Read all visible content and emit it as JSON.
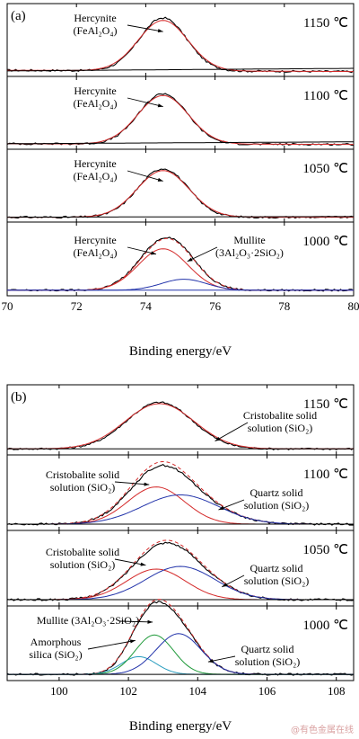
{
  "watermark": "@有色金属在线",
  "chart_data": [
    {
      "type": "line",
      "panel_label": "(a)",
      "xlabel": "Binding energy/eV",
      "xlim": [
        70,
        80
      ],
      "xticks": [
        70,
        72,
        74,
        76,
        78,
        80
      ],
      "ylabel": "",
      "grid": false,
      "subplots": [
        {
          "temperature": "1150 ℃",
          "annotations": [
            {
              "lines": [
                "Hercynite",
                "(FeAl₂O₄)"
              ],
              "target_x": 74.5
            }
          ],
          "series": [
            {
              "role": "measured",
              "color": "#000000",
              "style": "solid",
              "peaks": [
                {
                  "center": 74.5,
                  "sigma": 0.68,
                  "amp": 0.83
                }
              ],
              "baseline": [
                0.04,
                0.02
              ]
            },
            {
              "role": "fit",
              "color": "#d42a2a",
              "style": "solid",
              "peaks": [
                {
                  "center": 74.5,
                  "sigma": 0.72,
                  "amp": 0.79
                }
              ],
              "baseline": [
                0.04,
                0.02
              ]
            },
            {
              "role": "background",
              "color": "#000000",
              "style": "solid",
              "peaks": [],
              "baseline": [
                0.03,
                0.07
              ]
            }
          ]
        },
        {
          "temperature": "1100 ℃",
          "annotations": [
            {
              "lines": [
                "Hercynite",
                "(FeAl₂O₄)"
              ],
              "target_x": 74.5
            }
          ],
          "series": [
            {
              "role": "measured",
              "color": "#000000",
              "style": "solid",
              "peaks": [
                {
                  "center": 74.5,
                  "sigma": 0.7,
                  "amp": 0.79
                }
              ],
              "baseline": [
                0.03,
                0.02
              ]
            },
            {
              "role": "fit",
              "color": "#d42a2a",
              "style": "solid",
              "peaks": [
                {
                  "center": 74.5,
                  "sigma": 0.73,
                  "amp": 0.76
                }
              ],
              "baseline": [
                0.03,
                0.02
              ]
            },
            {
              "role": "background",
              "color": "#000000",
              "style": "solid",
              "peaks": [],
              "baseline": [
                0.03,
                0.06
              ]
            }
          ]
        },
        {
          "temperature": "1050 ℃",
          "annotations": [
            {
              "lines": [
                "Hercynite",
                "(FeAl₂O₄)"
              ],
              "target_x": 74.5
            }
          ],
          "series": [
            {
              "role": "measured",
              "color": "#000000",
              "style": "solid",
              "peaks": [
                {
                  "center": 74.5,
                  "sigma": 0.72,
                  "amp": 0.76
                }
              ],
              "baseline": [
                0.02,
                0.02
              ]
            },
            {
              "role": "fit",
              "color": "#d42a2a",
              "style": "solid",
              "peaks": [
                {
                  "center": 74.5,
                  "sigma": 0.75,
                  "amp": 0.73
                }
              ],
              "baseline": [
                0.02,
                0.02
              ]
            },
            {
              "role": "background",
              "color": "#000000",
              "style": "solid",
              "peaks": [],
              "baseline": [
                0.02,
                0.03
              ]
            }
          ]
        },
        {
          "temperature": "1000 ℃",
          "annotations": [
            {
              "lines": [
                "Hercynite",
                "(FeAl₂O₄)"
              ],
              "target_x": 74.3
            },
            {
              "lines": [
                "Mullite",
                "(3Al₂O₃·2SiO₂)"
              ],
              "target_x": 75.2
            }
          ],
          "series": [
            {
              "role": "measured",
              "color": "#000000",
              "style": "solid",
              "peaks": [
                {
                  "center": 74.5,
                  "sigma": 0.72,
                  "amp": 0.7
                },
                {
                  "center": 75.1,
                  "sigma": 0.65,
                  "amp": 0.17
                }
              ],
              "baseline": [
                0.03,
                0.03
              ]
            },
            {
              "role": "envelope",
              "color": "#d42a2a",
              "style": "dashed",
              "peaks": [
                {
                  "center": 74.5,
                  "sigma": 0.72,
                  "amp": 0.68
                },
                {
                  "center": 75.1,
                  "sigma": 0.65,
                  "amp": 0.17
                }
              ],
              "baseline": [
                0.03,
                0.03
              ]
            },
            {
              "role": "component",
              "color": "#d42a2a",
              "style": "solid",
              "peaks": [
                {
                  "center": 74.5,
                  "sigma": 0.72,
                  "amp": 0.64
                }
              ],
              "baseline": [
                0.03,
                0.03
              ]
            },
            {
              "role": "component",
              "color": "#2233aa",
              "style": "solid",
              "peaks": [
                {
                  "center": 75.1,
                  "sigma": 0.65,
                  "amp": 0.17
                }
              ],
              "baseline": [
                0.03,
                0.03
              ]
            },
            {
              "role": "background",
              "color": "#2233aa",
              "style": "solid",
              "peaks": [],
              "baseline": [
                0.03,
                0.03
              ]
            }
          ]
        }
      ]
    },
    {
      "type": "line",
      "panel_label": "(b)",
      "xlabel": "Binding energy/eV",
      "xlim": [
        98.5,
        108.5
      ],
      "xticks": [
        100,
        102,
        104,
        106,
        108
      ],
      "ylabel": "",
      "grid": false,
      "subplots": [
        {
          "temperature": "1150 ℃",
          "annotations": [
            {
              "lines": [
                "Cristobalite solid",
                "solution (SiO₂)"
              ],
              "target_x": 104.5
            }
          ],
          "series": [
            {
              "role": "measured",
              "color": "#000000",
              "style": "solid",
              "peaks": [
                {
                  "center": 102.9,
                  "sigma": 0.95,
                  "amp": 0.76
                }
              ],
              "baseline": [
                0.04,
                0.04
              ]
            },
            {
              "role": "fit",
              "color": "#d42a2a",
              "style": "solid",
              "peaks": [
                {
                  "center": 102.9,
                  "sigma": 1.0,
                  "amp": 0.74
                }
              ],
              "baseline": [
                0.04,
                0.04
              ]
            },
            {
              "role": "background",
              "color": "#000000",
              "style": "solid",
              "peaks": [],
              "baseline": [
                0.04,
                0.04
              ]
            }
          ]
        },
        {
          "temperature": "1100 ℃",
          "annotations": [
            {
              "lines": [
                "Cristobalite solid",
                "solution (SiO₂)"
              ],
              "target_x": 102.6
            },
            {
              "lines": [
                "Quartz solid",
                "solution (SiO₂)"
              ],
              "target_x": 104.6
            }
          ],
          "series": [
            {
              "role": "measured",
              "color": "#000000",
              "style": "solid",
              "peaks": [
                {
                  "center": 102.8,
                  "sigma": 0.82,
                  "amp": 0.52
                },
                {
                  "center": 103.5,
                  "sigma": 1.1,
                  "amp": 0.42
                }
              ],
              "baseline": [
                0.04,
                0.04
              ]
            },
            {
              "role": "envelope",
              "color": "#d42a2a",
              "style": "dashed",
              "peaks": [
                {
                  "center": 102.8,
                  "sigma": 0.82,
                  "amp": 0.56
                },
                {
                  "center": 103.5,
                  "sigma": 1.1,
                  "amp": 0.44
                }
              ],
              "baseline": [
                0.04,
                0.04
              ]
            },
            {
              "role": "component",
              "color": "#d42a2a",
              "style": "solid",
              "peaks": [
                {
                  "center": 102.8,
                  "sigma": 0.82,
                  "amp": 0.56
                }
              ],
              "baseline": [
                0.04,
                0.04
              ]
            },
            {
              "role": "component",
              "color": "#2233aa",
              "style": "solid",
              "peaks": [
                {
                  "center": 103.5,
                  "sigma": 1.1,
                  "amp": 0.44
                }
              ],
              "baseline": [
                0.04,
                0.04
              ]
            },
            {
              "role": "background",
              "color": "#000000",
              "style": "solid",
              "peaks": [],
              "baseline": [
                0.04,
                0.04
              ]
            }
          ]
        },
        {
          "temperature": "1050 ℃",
          "annotations": [
            {
              "lines": [
                "Cristobalite solid",
                "solution (SiO₂)"
              ],
              "target_x": 102.5
            },
            {
              "lines": [
                "Quartz solid",
                "solution (SiO₂)"
              ],
              "target_x": 104.7
            }
          ],
          "series": [
            {
              "role": "measured",
              "color": "#000000",
              "style": "solid",
              "peaks": [
                {
                  "center": 102.8,
                  "sigma": 0.85,
                  "amp": 0.44
                },
                {
                  "center": 103.5,
                  "sigma": 1.0,
                  "amp": 0.48
                }
              ],
              "baseline": [
                0.04,
                0.04
              ]
            },
            {
              "role": "envelope",
              "color": "#d42a2a",
              "style": "dashed",
              "peaks": [
                {
                  "center": 102.8,
                  "sigma": 0.85,
                  "amp": 0.46
                },
                {
                  "center": 103.5,
                  "sigma": 1.0,
                  "amp": 0.5
                }
              ],
              "baseline": [
                0.04,
                0.04
              ]
            },
            {
              "role": "component",
              "color": "#d42a2a",
              "style": "solid",
              "peaks": [
                {
                  "center": 102.8,
                  "sigma": 0.85,
                  "amp": 0.46
                }
              ],
              "baseline": [
                0.04,
                0.04
              ]
            },
            {
              "role": "component",
              "color": "#2233aa",
              "style": "solid",
              "peaks": [
                {
                  "center": 103.5,
                  "sigma": 1.0,
                  "amp": 0.5
                }
              ],
              "baseline": [
                0.04,
                0.04
              ]
            },
            {
              "role": "background",
              "color": "#000000",
              "style": "solid",
              "peaks": [],
              "baseline": [
                0.04,
                0.04
              ]
            }
          ]
        },
        {
          "temperature": "1000 ℃",
          "annotations": [
            {
              "lines": [
                "Mullite (3Al₂O₃·2SiO₂)"
              ],
              "target_x": 102.7
            },
            {
              "lines": [
                "Amorphous",
                "silica (SiO₂)"
              ],
              "target_x": 102.2
            },
            {
              "lines": [
                "Quartz solid",
                "solution (SiO₂)"
              ],
              "target_x": 104.3
            }
          ],
          "series": [
            {
              "role": "measured",
              "color": "#000000",
              "style": "solid",
              "peaks": [
                {
                  "center": 102.3,
                  "sigma": 0.5,
                  "amp": 0.26
                },
                {
                  "center": 102.75,
                  "sigma": 0.55,
                  "amp": 0.58
                },
                {
                  "center": 103.45,
                  "sigma": 0.65,
                  "amp": 0.6
                }
              ],
              "baseline": [
                0.04,
                0.04
              ]
            },
            {
              "role": "envelope",
              "color": "#d42a2a",
              "style": "dashed",
              "peaks": [
                {
                  "center": 102.3,
                  "sigma": 0.5,
                  "amp": 0.27
                },
                {
                  "center": 102.75,
                  "sigma": 0.55,
                  "amp": 0.6
                },
                {
                  "center": 103.45,
                  "sigma": 0.65,
                  "amp": 0.62
                }
              ],
              "baseline": [
                0.04,
                0.04
              ]
            },
            {
              "role": "component",
              "color": "#2a9dbf",
              "style": "solid",
              "peaks": [
                {
                  "center": 102.3,
                  "sigma": 0.5,
                  "amp": 0.27
                }
              ],
              "baseline": [
                0.04,
                0.04
              ]
            },
            {
              "role": "component",
              "color": "#1f9a3a",
              "style": "solid",
              "peaks": [
                {
                  "center": 102.75,
                  "sigma": 0.55,
                  "amp": 0.6
                }
              ],
              "baseline": [
                0.04,
                0.04
              ]
            },
            {
              "role": "component",
              "color": "#2233aa",
              "style": "solid",
              "peaks": [
                {
                  "center": 103.45,
                  "sigma": 0.65,
                  "amp": 0.62
                }
              ],
              "baseline": [
                0.04,
                0.04
              ]
            },
            {
              "role": "background",
              "color": "#000000",
              "style": "solid",
              "peaks": [],
              "baseline": [
                0.04,
                0.04
              ]
            }
          ]
        }
      ]
    }
  ]
}
